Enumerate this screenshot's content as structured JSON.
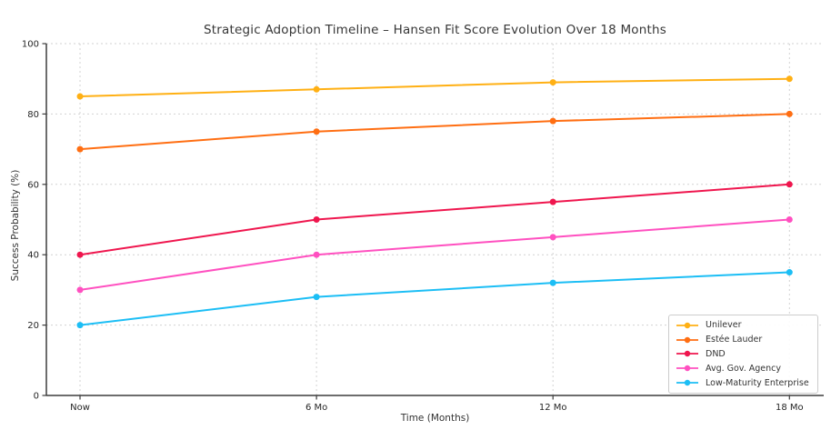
{
  "chart_data": {
    "type": "line",
    "title": "Strategic Adoption Timeline – Hansen Fit Score Evolution Over 18 Months",
    "xlabel": "Time (Months)",
    "ylabel": "Success Probability (%)",
    "categories": [
      "Now",
      "6 Mo",
      "12 Mo",
      "18 Mo"
    ],
    "ylim": [
      0,
      100
    ],
    "yticks": [
      0,
      20,
      40,
      60,
      80,
      100
    ],
    "grid": true,
    "legend_position": "lower right",
    "series": [
      {
        "name": "Unilever",
        "color": "#FFB014",
        "values": [
          85,
          87,
          89,
          90
        ]
      },
      {
        "name": "Estée Lauder",
        "color": "#FF6E12",
        "values": [
          70,
          75,
          78,
          80
        ]
      },
      {
        "name": "DND",
        "color": "#EF164E",
        "values": [
          40,
          50,
          55,
          60
        ]
      },
      {
        "name": "Avg. Gov. Agency",
        "color": "#FF50C0",
        "values": [
          30,
          40,
          45,
          50
        ]
      },
      {
        "name": "Low-Maturity Enterprise",
        "color": "#1CBEF5",
        "values": [
          20,
          28,
          32,
          35
        ]
      }
    ]
  },
  "style": {
    "grid_color": "#d2d2d2",
    "spine_color": "#3d3d3d",
    "tick_label_color": "#262626"
  }
}
